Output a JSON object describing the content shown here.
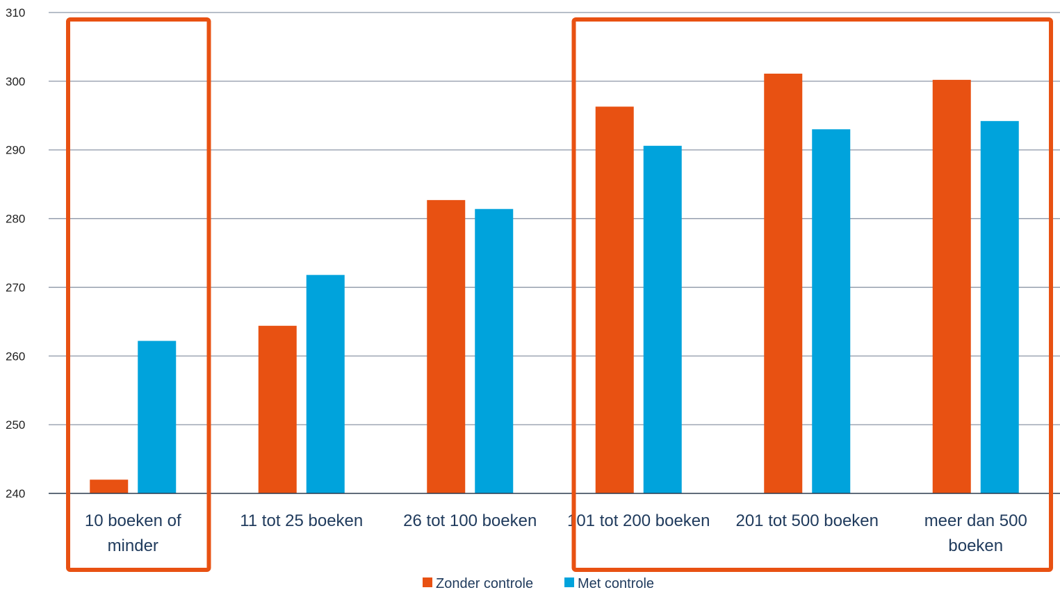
{
  "chart_data": {
    "type": "bar",
    "categories": [
      [
        "10 boeken of",
        "minder"
      ],
      [
        "11 tot 25 boeken"
      ],
      [
        "26 tot 100 boeken"
      ],
      [
        "101 tot 200 boeken"
      ],
      [
        "201 tot 500 boeken"
      ],
      [
        "meer dan 500",
        "boeken"
      ]
    ],
    "series": [
      {
        "name": "Zonder controle",
        "color": "#E85112",
        "values": [
          242,
          264.4,
          282.7,
          296.3,
          301.1,
          300.2
        ]
      },
      {
        "name": "Met controle",
        "color": "#00A3DC",
        "values": [
          262.2,
          271.8,
          281.4,
          290.6,
          293,
          294.2
        ]
      }
    ],
    "ylim": [
      240,
      310
    ],
    "yticks": [
      240,
      250,
      260,
      270,
      280,
      290,
      300,
      310
    ],
    "grid": true,
    "legend": "bottom-center",
    "highlight_color": "#E85112",
    "highlight_groups": [
      [
        0,
        0
      ],
      [
        3,
        5
      ]
    ]
  }
}
